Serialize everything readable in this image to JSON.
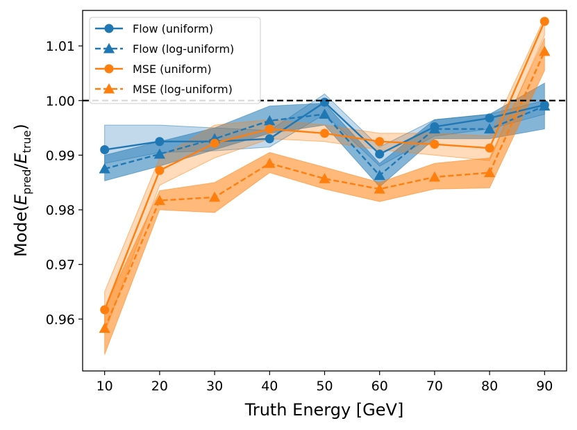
{
  "chart_data": {
    "type": "line",
    "xlabel": "Truth Energy [GeV]",
    "ylabel_parts": {
      "prefix": "Mode(",
      "e1": "E",
      "sub1": "pred",
      "slash": "/",
      "e2": "E",
      "sub2": "true",
      "suffix": ")"
    },
    "x": [
      10,
      20,
      30,
      40,
      50,
      60,
      70,
      80,
      90
    ],
    "xticks": [
      "10",
      "20",
      "30",
      "40",
      "50",
      "60",
      "70",
      "80",
      "90"
    ],
    "yticks": [
      "0.96",
      "0.97",
      "0.98",
      "0.99",
      "1.00",
      "1.01"
    ],
    "ytick_values": [
      0.96,
      0.97,
      0.98,
      0.99,
      1.0,
      1.01
    ],
    "xlim": [
      6,
      94
    ],
    "ylim": [
      0.9505,
      1.0165
    ],
    "reference_line": 1.0,
    "legend_position": "upper-left",
    "series": [
      {
        "name": "Flow (uniform)",
        "color": "#1f77b4",
        "marker": "circle",
        "linestyle": "solid",
        "values": [
          0.991,
          0.9925,
          0.9925,
          0.993,
          0.9997,
          0.9902,
          0.9952,
          0.9968,
          0.9992
        ],
        "band_low": [
          0.9885,
          0.9905,
          0.9908,
          0.9915,
          0.9975,
          0.988,
          0.9935,
          0.9948,
          0.9975
        ],
        "band_high": [
          0.9955,
          0.9955,
          0.995,
          0.9945,
          1.0012,
          0.9915,
          0.9965,
          0.9975,
          1.0
        ]
      },
      {
        "name": "Flow (log-uniform)",
        "color": "#1f77b4",
        "marker": "triangle",
        "linestyle": "dashed",
        "values": [
          0.9875,
          0.9902,
          0.993,
          0.9963,
          0.9975,
          0.9863,
          0.9948,
          0.9948,
          0.999
        ],
        "band_low": [
          0.9853,
          0.988,
          0.991,
          0.994,
          0.9955,
          0.9842,
          0.993,
          0.993,
          0.9948
        ],
        "band_high": [
          0.99,
          0.9925,
          0.995,
          0.999,
          0.9995,
          0.9885,
          0.9965,
          0.9975,
          1.0032
        ]
      },
      {
        "name": "MSE (uniform)",
        "color": "#ff7f0e",
        "marker": "circle",
        "linestyle": "solid",
        "values": [
          0.9617,
          0.9872,
          0.9922,
          0.9948,
          0.994,
          0.9925,
          0.992,
          0.9913,
          1.0145
        ],
        "band_low": [
          0.9575,
          0.9845,
          0.9895,
          0.993,
          0.9925,
          0.991,
          0.99,
          0.989,
          1.012
        ],
        "band_high": [
          0.965,
          0.9895,
          0.9955,
          0.9965,
          0.9955,
          0.994,
          0.994,
          0.9935,
          1.0152
        ]
      },
      {
        "name": "MSE (log-uniform)",
        "color": "#ff7f0e",
        "marker": "triangle",
        "linestyle": "dashed",
        "values": [
          0.9583,
          0.9817,
          0.9823,
          0.9885,
          0.9857,
          0.9838,
          0.986,
          0.9868,
          1.009
        ],
        "band_low": [
          0.9535,
          0.98,
          0.9795,
          0.9868,
          0.9838,
          0.9815,
          0.9838,
          0.984,
          1.0055
        ],
        "band_high": [
          0.962,
          0.9835,
          0.985,
          0.9905,
          0.9878,
          0.985,
          0.9885,
          0.9895,
          1.0115
        ]
      }
    ]
  }
}
